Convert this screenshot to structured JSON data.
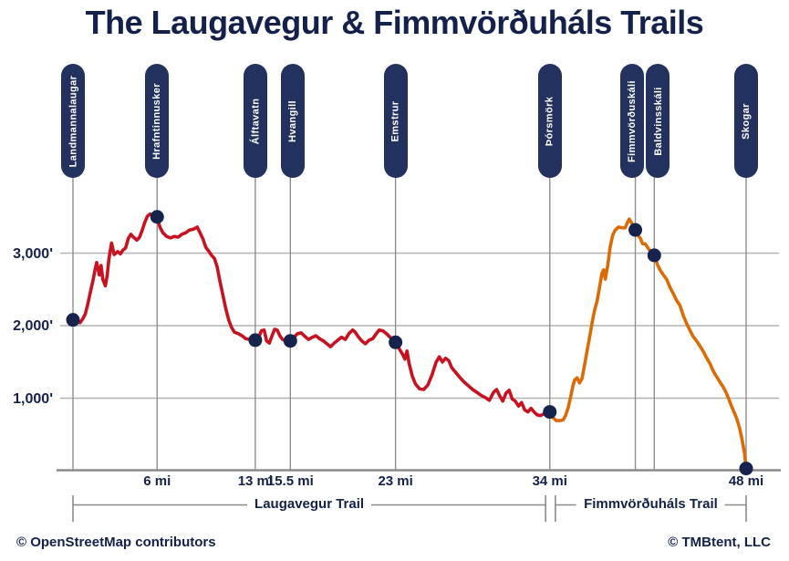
{
  "title": "The Laugavegur & Fimmvörðuháls Trails",
  "credits": {
    "left": "© OpenStreetMap contributors",
    "right": "© TMBtent, LLC"
  },
  "colors": {
    "navy": "#14224b",
    "pill": "#22315e",
    "dot": "#16234d",
    "red": "#c8121f",
    "orange": "#dd6b05",
    "grid": "#b3b3b3",
    "stem": "#8f8f8f",
    "axis": "#8a8a8a"
  },
  "chart_data": {
    "type": "line",
    "title": "The Laugavegur & Fimmvörðuháls Trails",
    "xlabel": "",
    "ylabel": "",
    "xlim": [
      0,
      48
    ],
    "ylim": [
      0,
      3600
    ],
    "grid": "on",
    "x_ticks": [
      {
        "mi": 6,
        "label": "6 mi"
      },
      {
        "mi": 13,
        "label": "13 mi"
      },
      {
        "mi": 15.5,
        "label": "15.5 mi"
      },
      {
        "mi": 23,
        "label": "23 mi"
      },
      {
        "mi": 34,
        "label": "34 mi"
      },
      {
        "mi": 48,
        "label": "48 mi"
      }
    ],
    "y_ticks": [
      {
        "ft": 1000,
        "label": "1,000'"
      },
      {
        "ft": 2000,
        "label": "2,000'"
      },
      {
        "ft": 3000,
        "label": "3,000'"
      }
    ],
    "stations": [
      {
        "name": "Landmannalaugar",
        "mi": 0,
        "ft": 2080,
        "pill_dx": 0
      },
      {
        "name": "Hrafntinnusker",
        "mi": 6,
        "ft": 3500,
        "pill_dx": 0
      },
      {
        "name": "Álftavatn",
        "mi": 13,
        "ft": 1800,
        "pill_dx": 0
      },
      {
        "name": "Hvangill",
        "mi": 15.5,
        "ft": 1790,
        "pill_dx": 3
      },
      {
        "name": "Emstrur",
        "mi": 23,
        "ft": 1770,
        "pill_dx": 0
      },
      {
        "name": "Þórsmörk",
        "mi": 34,
        "ft": 810,
        "pill_dx": 0
      },
      {
        "name": "Fimmvörðuskáli",
        "mi": 40.1,
        "ft": 3320,
        "pill_dx": -4
      },
      {
        "name": "Baldvinsskáli",
        "mi": 41.45,
        "ft": 2970,
        "pill_dx": 4
      },
      {
        "name": "Skogar",
        "mi": 48,
        "ft": 30,
        "pill_dx": 0
      }
    ],
    "series": [
      {
        "name": "Laugavegur Trail",
        "color_key": "red",
        "points": [
          [
            0,
            2080
          ],
          [
            0.25,
            2060
          ],
          [
            0.5,
            2040
          ],
          [
            0.69,
            2090
          ],
          [
            0.88,
            2160
          ],
          [
            1.06,
            2300
          ],
          [
            1.25,
            2470
          ],
          [
            1.44,
            2630
          ],
          [
            1.56,
            2760
          ],
          [
            1.69,
            2870
          ],
          [
            1.88,
            2700
          ],
          [
            2,
            2830
          ],
          [
            2.13,
            2640
          ],
          [
            2.31,
            2550
          ],
          [
            2.44,
            2690
          ],
          [
            2.56,
            2920
          ],
          [
            2.75,
            3140
          ],
          [
            2.94,
            2980
          ],
          [
            3.19,
            3020
          ],
          [
            3.38,
            2990
          ],
          [
            3.56,
            3040
          ],
          [
            3.75,
            3070
          ],
          [
            3.94,
            3200
          ],
          [
            4.13,
            3260
          ],
          [
            4.31,
            3220
          ],
          [
            4.56,
            3180
          ],
          [
            4.75,
            3220
          ],
          [
            4.94,
            3320
          ],
          [
            5.13,
            3430
          ],
          [
            5.31,
            3510
          ],
          [
            5.5,
            3540
          ],
          [
            5.69,
            3520
          ],
          [
            6,
            3500
          ],
          [
            6.2,
            3360
          ],
          [
            6.41,
            3280
          ],
          [
            6.68,
            3230
          ],
          [
            6.95,
            3210
          ],
          [
            7.22,
            3230
          ],
          [
            7.5,
            3220
          ],
          [
            7.77,
            3260
          ],
          [
            8.04,
            3280
          ],
          [
            8.31,
            3320
          ],
          [
            8.58,
            3330
          ],
          [
            8.86,
            3360
          ],
          [
            9.06,
            3280
          ],
          [
            9.26,
            3200
          ],
          [
            9.47,
            3080
          ],
          [
            9.67,
            3030
          ],
          [
            9.88,
            2970
          ],
          [
            10.08,
            2930
          ],
          [
            10.28,
            2810
          ],
          [
            10.49,
            2600
          ],
          [
            10.69,
            2420
          ],
          [
            10.9,
            2230
          ],
          [
            11.1,
            2080
          ],
          [
            11.3,
            1980
          ],
          [
            11.51,
            1910
          ],
          [
            11.78,
            1890
          ],
          [
            12.05,
            1860
          ],
          [
            12.32,
            1820
          ],
          [
            12.6,
            1810
          ],
          [
            12.8,
            1840
          ],
          [
            13,
            1800
          ],
          [
            13.25,
            1840
          ],
          [
            13.44,
            1930
          ],
          [
            13.63,
            1940
          ],
          [
            13.81,
            1790
          ],
          [
            14,
            1760
          ],
          [
            14.19,
            1860
          ],
          [
            14.38,
            1950
          ],
          [
            14.56,
            1940
          ],
          [
            14.75,
            1860
          ],
          [
            14.94,
            1810
          ],
          [
            15.13,
            1790
          ],
          [
            15.31,
            1800
          ],
          [
            15.5,
            1790
          ],
          [
            15.76,
            1840
          ],
          [
            16.02,
            1890
          ],
          [
            16.28,
            1900
          ],
          [
            16.54,
            1850
          ],
          [
            16.8,
            1810
          ],
          [
            17.07,
            1840
          ],
          [
            17.33,
            1860
          ],
          [
            17.59,
            1820
          ],
          [
            17.85,
            1790
          ],
          [
            18.11,
            1750
          ],
          [
            18.37,
            1710
          ],
          [
            18.63,
            1760
          ],
          [
            18.89,
            1800
          ],
          [
            19.15,
            1840
          ],
          [
            19.42,
            1810
          ],
          [
            19.68,
            1890
          ],
          [
            19.94,
            1940
          ],
          [
            20.13,
            1910
          ],
          [
            20.33,
            1850
          ],
          [
            20.59,
            1790
          ],
          [
            20.85,
            1750
          ],
          [
            21.11,
            1800
          ],
          [
            21.37,
            1820
          ],
          [
            21.63,
            1890
          ],
          [
            21.83,
            1940
          ],
          [
            22.09,
            1930
          ],
          [
            22.35,
            1890
          ],
          [
            22.61,
            1840
          ],
          [
            22.8,
            1810
          ],
          [
            23,
            1770
          ],
          [
            23.3,
            1670
          ],
          [
            23.52,
            1600
          ],
          [
            23.67,
            1540
          ],
          [
            23.82,
            1650
          ],
          [
            23.97,
            1480
          ],
          [
            24.19,
            1310
          ],
          [
            24.41,
            1200
          ],
          [
            24.71,
            1130
          ],
          [
            25.01,
            1120
          ],
          [
            25.3,
            1180
          ],
          [
            25.6,
            1320
          ],
          [
            25.9,
            1500
          ],
          [
            26.12,
            1570
          ],
          [
            26.34,
            1500
          ],
          [
            26.57,
            1550
          ],
          [
            26.79,
            1520
          ],
          [
            27.01,
            1420
          ],
          [
            27.31,
            1350
          ],
          [
            27.61,
            1280
          ],
          [
            27.9,
            1220
          ],
          [
            28.2,
            1170
          ],
          [
            28.5,
            1120
          ],
          [
            28.8,
            1080
          ],
          [
            29.09,
            1040
          ],
          [
            29.39,
            1010
          ],
          [
            29.69,
            970
          ],
          [
            29.99,
            1080
          ],
          [
            30.21,
            1120
          ],
          [
            30.43,
            1030
          ],
          [
            30.65,
            960
          ],
          [
            30.88,
            1070
          ],
          [
            31.1,
            1110
          ],
          [
            31.32,
            990
          ],
          [
            31.54,
            960
          ],
          [
            31.77,
            890
          ],
          [
            31.99,
            940
          ],
          [
            32.21,
            840
          ],
          [
            32.44,
            810
          ],
          [
            32.66,
            860
          ],
          [
            32.88,
            810
          ],
          [
            33.1,
            770
          ],
          [
            33.33,
            760
          ],
          [
            33.55,
            780
          ],
          [
            33.77,
            790
          ],
          [
            34,
            810
          ]
        ]
      },
      {
        "name": "Fimmvörðuháls Trail",
        "color_key": "orange",
        "points": [
          [
            34,
            810
          ],
          [
            34.24,
            730
          ],
          [
            34.47,
            690
          ],
          [
            34.71,
            690
          ],
          [
            34.95,
            700
          ],
          [
            35.12,
            760
          ],
          [
            35.3,
            860
          ],
          [
            35.48,
            1010
          ],
          [
            35.65,
            1170
          ],
          [
            35.77,
            1250
          ],
          [
            35.95,
            1280
          ],
          [
            36.13,
            1210
          ],
          [
            36.3,
            1270
          ],
          [
            36.48,
            1460
          ],
          [
            36.66,
            1650
          ],
          [
            36.84,
            1840
          ],
          [
            37.01,
            2030
          ],
          [
            37.19,
            2210
          ],
          [
            37.37,
            2340
          ],
          [
            37.55,
            2530
          ],
          [
            37.72,
            2720
          ],
          [
            37.84,
            2770
          ],
          [
            37.96,
            2640
          ],
          [
            38.14,
            2840
          ],
          [
            38.31,
            3090
          ],
          [
            38.49,
            3250
          ],
          [
            38.67,
            3320
          ],
          [
            38.9,
            3360
          ],
          [
            39.14,
            3350
          ],
          [
            39.38,
            3350
          ],
          [
            39.55,
            3430
          ],
          [
            39.67,
            3470
          ],
          [
            39.85,
            3410
          ],
          [
            40.08,
            3320
          ],
          [
            40.26,
            3250
          ],
          [
            40.44,
            3210
          ],
          [
            40.62,
            3130
          ],
          [
            40.8,
            3130
          ],
          [
            40.97,
            3080
          ],
          [
            41.15,
            3030
          ],
          [
            41.45,
            2970
          ],
          [
            41.68,
            2840
          ],
          [
            41.86,
            2770
          ],
          [
            42.1,
            2700
          ],
          [
            42.33,
            2640
          ],
          [
            42.57,
            2530
          ],
          [
            42.81,
            2440
          ],
          [
            43.04,
            2350
          ],
          [
            43.28,
            2280
          ],
          [
            43.52,
            2140
          ],
          [
            43.75,
            2030
          ],
          [
            43.99,
            1940
          ],
          [
            44.22,
            1850
          ],
          [
            44.46,
            1790
          ],
          [
            44.7,
            1720
          ],
          [
            44.93,
            1650
          ],
          [
            45.17,
            1560
          ],
          [
            45.41,
            1480
          ],
          [
            45.64,
            1380
          ],
          [
            45.88,
            1300
          ],
          [
            46.11,
            1230
          ],
          [
            46.35,
            1160
          ],
          [
            46.59,
            1070
          ],
          [
            46.82,
            960
          ],
          [
            47,
            870
          ],
          [
            47.18,
            790
          ],
          [
            47.36,
            700
          ],
          [
            47.53,
            590
          ],
          [
            47.71,
            430
          ],
          [
            47.89,
            240
          ],
          [
            48,
            30
          ]
        ]
      }
    ],
    "brackets": [
      {
        "label": "Laugavegur Trail",
        "from_mi": 0,
        "to_mi": 33.7
      },
      {
        "label": "Fimmvörðuháls Trail",
        "from_mi": 34.4,
        "to_mi": 48
      }
    ]
  }
}
